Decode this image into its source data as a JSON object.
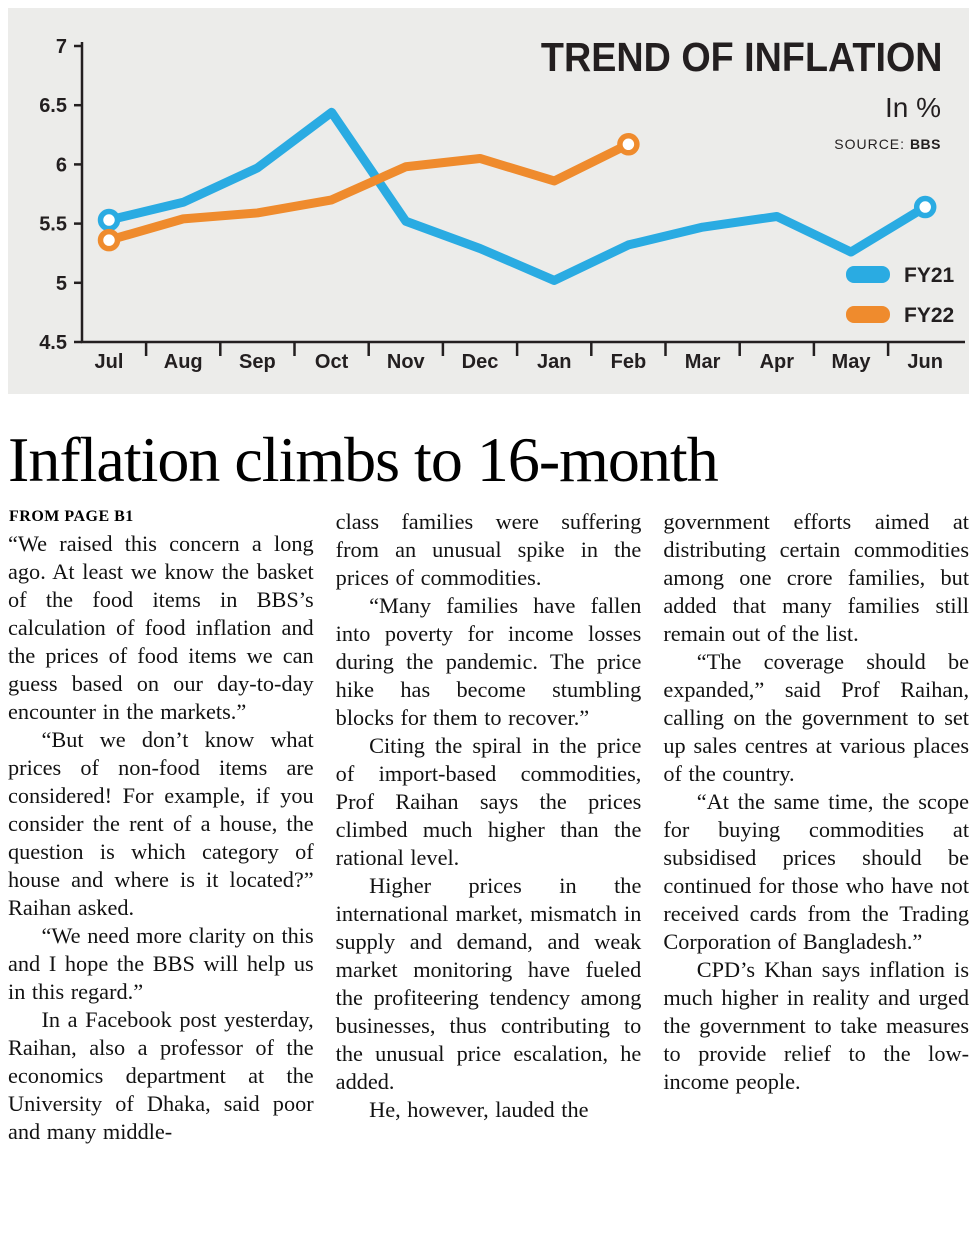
{
  "chart_data": {
    "type": "line",
    "title": "TREND OF INFLATION",
    "unit_label": "In %",
    "source_label": "SOURCE:",
    "source_value": "BBS",
    "categories": [
      "Jul",
      "Aug",
      "Sep",
      "Oct",
      "Nov",
      "Dec",
      "Jan",
      "Feb",
      "Mar",
      "Apr",
      "May",
      "Jun"
    ],
    "ylim": [
      4.5,
      7
    ],
    "yticks": [
      4.5,
      5,
      5.5,
      6,
      6.5,
      7
    ],
    "grid": false,
    "legend_position": "bottom-right",
    "series": [
      {
        "name": "FY21",
        "color": "#2aabe2",
        "values": [
          5.53,
          5.68,
          5.97,
          6.44,
          5.52,
          5.29,
          5.02,
          5.32,
          5.47,
          5.56,
          5.26,
          5.64
        ],
        "markers": [
          0,
          11
        ]
      },
      {
        "name": "FY22",
        "color": "#ef8b2d",
        "values": [
          5.36,
          5.54,
          5.59,
          5.7,
          5.98,
          6.05,
          5.86,
          6.17,
          null,
          null,
          null,
          null
        ],
        "markers": [
          0,
          7
        ]
      }
    ]
  },
  "article": {
    "headline": "Inflation climbs to 16-month",
    "kicker": "FROM PAGE B1",
    "columns": [
      [
        "“We raised this concern a long ago. At least we know the basket of the food items in BBS’s calculation of food inflation and the prices of food items we can guess based on our day-to-day encounter in the markets.”",
        "“But we don’t know what prices of non-food items are considered! For example, if you consider the rent of a house, the question is which category of house and where is it located?” Raihan asked.",
        "“We need more clarity on this and I hope the BBS will help us in this regard.”",
        "In a Facebook post yesterday, Raihan, also a professor of the economics department at the University of Dhaka, said poor and many middle-"
      ],
      [
        "class families were suffering from an unusual spike in the prices of commodities.",
        "“Many families have fallen into poverty for income losses during the pandemic. The price hike has become stumbling blocks for them to recover.”",
        "Citing the spiral in the price of import-based commodities, Prof Raihan says the prices climbed much higher than the rational level.",
        "Higher prices in the international market, mismatch in supply and demand, and weak market monitoring have fueled the profiteering tendency among businesses, thus contributing to the unusual price escalation, he added.",
        "He, however, lauded the"
      ],
      [
        "government efforts aimed at distributing certain commodities among one crore families, but added that many families still remain out of the list.",
        "“The coverage should be expanded,” said Prof Raihan, calling on the government to set up sales centres at various places of the country.",
        "“At the same time, the scope for buying commodities at subsidised prices should be continued for those who have not received cards from the Trading Corporation of Bangladesh.”",
        "CPD’s Khan says inflation is much higher in reality and urged the government to take measures to provide relief to the low-income people."
      ]
    ]
  }
}
